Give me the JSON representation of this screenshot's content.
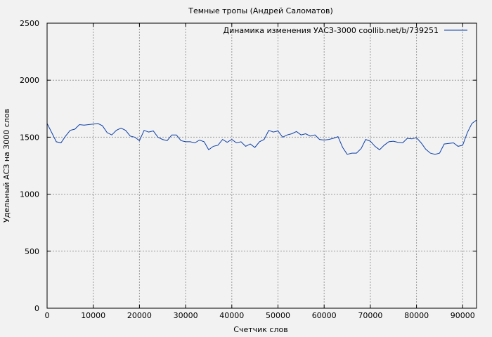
{
  "chart_data": {
    "type": "line",
    "title": "Темные тропы (Андрей Саломатов)",
    "xlabel": "Счетчик слов",
    "ylabel": "Удельный АСЗ на 3000 слов",
    "xlim": [
      0,
      93000
    ],
    "ylim": [
      0,
      2500
    ],
    "xticks": [
      0,
      10000,
      20000,
      30000,
      40000,
      50000,
      60000,
      70000,
      80000,
      90000
    ],
    "yticks": [
      0,
      500,
      1000,
      1500,
      2000,
      2500
    ],
    "grid": true,
    "legend_position": "top-right",
    "series": [
      {
        "name": "Динамика изменения УАСЗ-3000 coollib.net/b/739251",
        "color": "#0b3ea8",
        "x": [
          0,
          1000,
          2000,
          3000,
          4000,
          5000,
          6000,
          7000,
          8000,
          9000,
          10000,
          11000,
          12000,
          13000,
          14000,
          15000,
          16000,
          17000,
          18000,
          19000,
          20000,
          21000,
          22000,
          23000,
          24000,
          25000,
          26000,
          27000,
          28000,
          29000,
          30000,
          31000,
          32000,
          33000,
          34000,
          35000,
          36000,
          37000,
          38000,
          39000,
          40000,
          41000,
          42000,
          43000,
          44000,
          45000,
          46000,
          47000,
          48000,
          49000,
          50000,
          51000,
          52000,
          53000,
          54000,
          55000,
          56000,
          57000,
          58000,
          59000,
          60000,
          61000,
          62000,
          63000,
          64000,
          65000,
          66000,
          67000,
          68000,
          69000,
          70000,
          71000,
          72000,
          73000,
          74000,
          75000,
          76000,
          77000,
          78000,
          79000,
          80000,
          81000,
          82000,
          83000,
          84000,
          85000,
          86000,
          87000,
          88000,
          89000,
          90000,
          91000,
          92000,
          93000
        ],
        "y": [
          1620,
          1540,
          1460,
          1450,
          1510,
          1560,
          1570,
          1610,
          1605,
          1610,
          1615,
          1620,
          1600,
          1540,
          1520,
          1560,
          1580,
          1560,
          1510,
          1500,
          1470,
          1560,
          1545,
          1555,
          1500,
          1480,
          1470,
          1520,
          1520,
          1470,
          1460,
          1460,
          1450,
          1475,
          1460,
          1390,
          1420,
          1430,
          1480,
          1455,
          1480,
          1450,
          1460,
          1420,
          1440,
          1410,
          1460,
          1480,
          1560,
          1545,
          1555,
          1500,
          1520,
          1530,
          1550,
          1520,
          1530,
          1510,
          1520,
          1480,
          1475,
          1480,
          1490,
          1505,
          1410,
          1350,
          1360,
          1360,
          1400,
          1480,
          1465,
          1420,
          1390,
          1430,
          1460,
          1465,
          1455,
          1450,
          1490,
          1485,
          1495,
          1450,
          1395,
          1360,
          1350,
          1360,
          1440,
          1445,
          1450,
          1420,
          1430,
          1540,
          1620,
          1650
        ]
      }
    ]
  }
}
